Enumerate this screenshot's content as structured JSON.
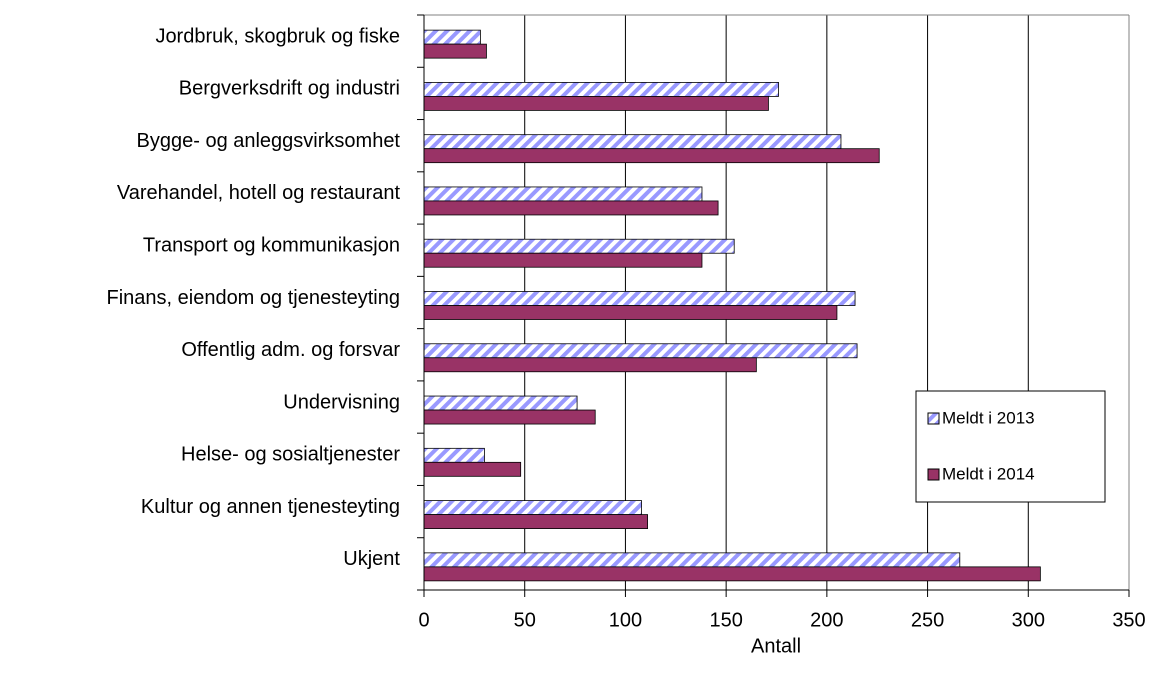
{
  "chart_data": {
    "type": "hbar",
    "categories": [
      "Jordbruk, skogbruk og fiske",
      "Bergverksdrift og industri",
      "Bygge- og anleggsvirksomhet",
      "Varehandel, hotell og restaurant",
      "Transport og kommunikasjon",
      "Finans, eiendom og tjenesteyting",
      "Offentlig adm. og forsvar",
      "Undervisning",
      "Helse- og sosialtjenester",
      "Kultur og annen tjenesteyting",
      "Ukjent"
    ],
    "series": [
      {
        "name": "Meldt i 2013",
        "color": "#9999ff",
        "hatch": true,
        "values": [
          28,
          176,
          207,
          138,
          154,
          214,
          215,
          76,
          30,
          108,
          266
        ]
      },
      {
        "name": "Meldt i 2014",
        "color": "#993366",
        "values": [
          31,
          171,
          226,
          146,
          138,
          205,
          165,
          85,
          48,
          111,
          306
        ]
      }
    ],
    "xlabel": "Antall",
    "xlim": [
      0,
      350
    ],
    "xticks": [
      0,
      50,
      100,
      150,
      200,
      250,
      300,
      350
    ],
    "grid": true,
    "legend": "right"
  }
}
